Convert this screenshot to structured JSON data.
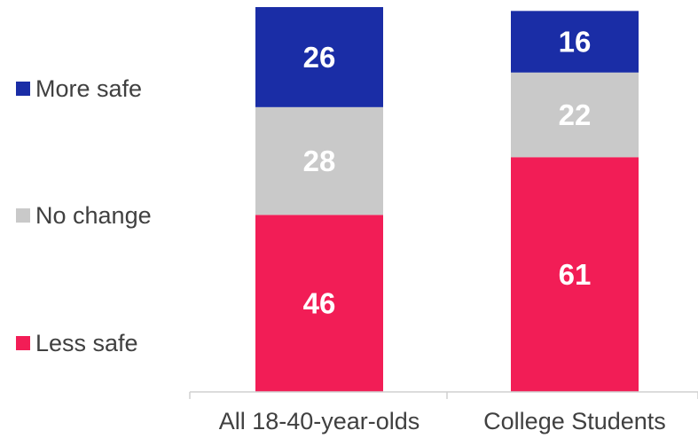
{
  "chart_data": {
    "type": "bar",
    "stacked": true,
    "categories": [
      "All 18-40-year-olds",
      "College Students"
    ],
    "series": [
      {
        "name": "Less safe",
        "color": "#F21D56",
        "values": [
          46,
          61
        ]
      },
      {
        "name": "No change",
        "color": "#C9C9C9",
        "values": [
          28,
          22
        ]
      },
      {
        "name": "More safe",
        "color": "#1A2DA6",
        "values": [
          26,
          16
        ]
      }
    ],
    "legend_position": "left",
    "grid": false,
    "ylim": [
      0,
      100
    ]
  },
  "colors": {
    "axis": "#D0D0D0",
    "text": "#404040",
    "data_label": "#FFFFFF"
  }
}
